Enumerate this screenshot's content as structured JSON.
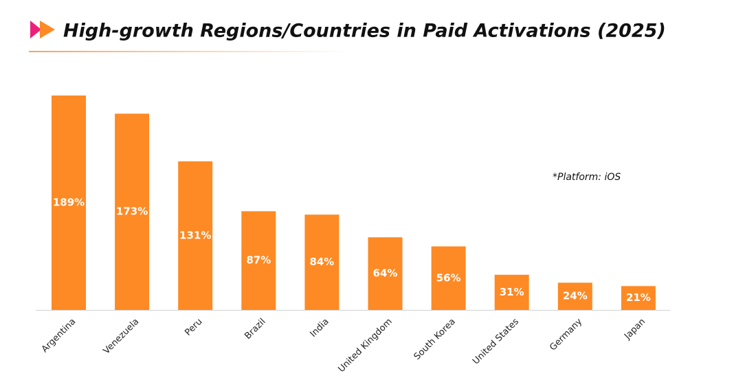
{
  "chart_data": {
    "type": "bar",
    "title": "High-growth Regions/Countries in Paid Activations  (2025)",
    "annotation": "*Platform:  iOS",
    "categories": [
      "Argentina",
      "Venezuela",
      "Peru",
      "Brazil",
      "India",
      "United Kingdom",
      "South Korea",
      "United States",
      "Germany",
      "Japan"
    ],
    "values": [
      189,
      173,
      131,
      87,
      84,
      64,
      56,
      31,
      24,
      21
    ],
    "value_labels": [
      "189%",
      "173%",
      "131%",
      "87%",
      "84%",
      "64%",
      "56%",
      "31%",
      "24%",
      "21%"
    ],
    "color": "#fd8a24"
  }
}
